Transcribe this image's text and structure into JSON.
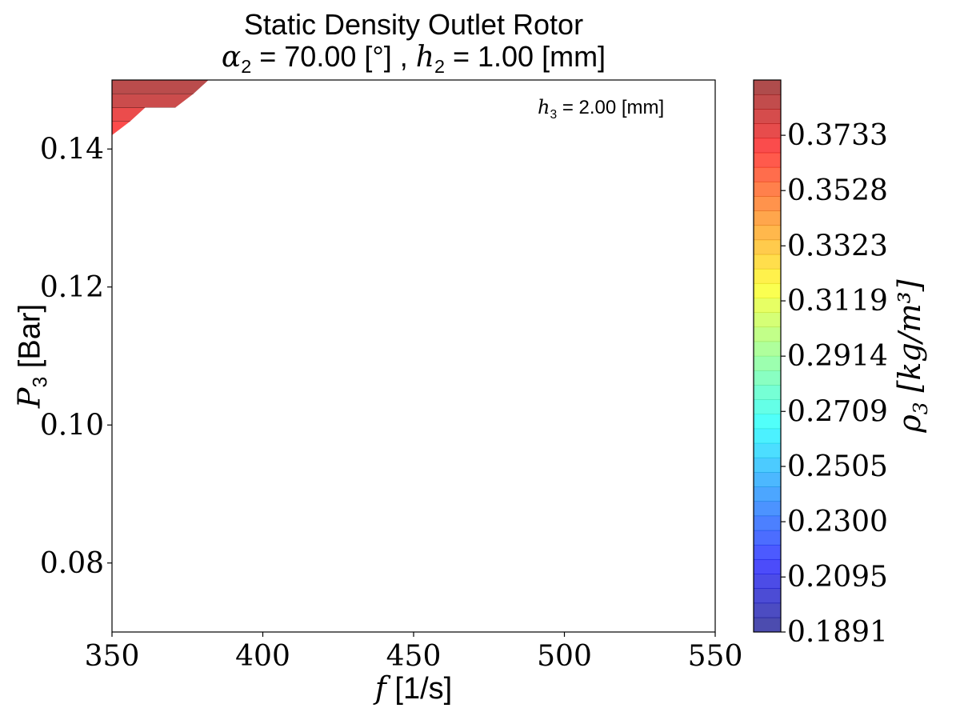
{
  "chart_data": {
    "type": "heatmap",
    "title": "Static Density Outlet Rotor",
    "subtitle": {
      "alpha_sym": "α",
      "alpha_sub": "2",
      "alpha_val": " = 70.00 [°] , ",
      "h_sym": "h",
      "h_sub": "2",
      "h_val": " = 1.00 [mm]"
    },
    "xlabel": {
      "sym": "f",
      "unit": " [1/s]"
    },
    "ylabel": {
      "sym": "P",
      "sub": "3",
      "unit": " [Bar]"
    },
    "annotation": {
      "sym": "h",
      "sub": "3",
      "val": " = 2.00 [mm]"
    },
    "colorbar_label": {
      "sym": "ρ",
      "sub": "3",
      "unit": " [kg/m³]"
    },
    "xlim": [
      350,
      550
    ],
    "ylim": [
      0.07,
      0.15
    ],
    "x_ticks": [
      "350",
      "400",
      "450",
      "500",
      "550"
    ],
    "y_ticks": [
      "0.08",
      "0.10",
      "0.12",
      "0.14"
    ],
    "colorbar": {
      "range": [
        0.1891,
        0.3938
      ],
      "tick_labels": [
        "0.1891",
        "0.2095",
        "0.2300",
        "0.2505",
        "0.2709",
        "0.2914",
        "0.3119",
        "0.3323",
        "0.3528",
        "0.3733"
      ],
      "levels": 38,
      "colormap": "jet",
      "alpha": 0.7
    },
    "filled_region": {
      "description_points_data_units": [
        [
          350,
          0.15
        ],
        [
          382,
          0.15
        ],
        [
          377,
          0.148
        ],
        [
          371,
          0.146
        ],
        [
          361,
          0.146
        ],
        [
          356,
          0.144
        ],
        [
          350,
          0.142
        ]
      ],
      "bands": [
        {
          "y_bottom": 0.148,
          "y_top": 0.15,
          "value": 0.388
        },
        {
          "y_bottom": 0.146,
          "y_top": 0.148,
          "value": 0.383
        },
        {
          "y_bottom": 0.144,
          "y_top": 0.146,
          "value": 0.374
        },
        {
          "y_bottom": 0.142,
          "y_top": 0.144,
          "value": 0.369
        }
      ]
    },
    "grid": false
  }
}
